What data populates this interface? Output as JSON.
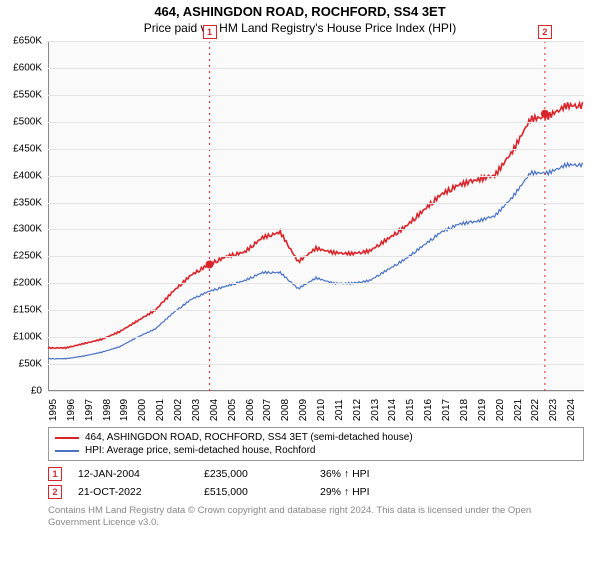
{
  "title_main": "464, ASHINGDON ROAD, ROCHFORD, SS4 3ET",
  "title_sub": "Price paid vs. HM Land Registry's House Price Index (HPI)",
  "chart": {
    "type": "line",
    "background_color": "#fafafa",
    "grid_color": "#e4e4e4",
    "axis_color": "#888888",
    "x_years": [
      1995,
      1996,
      1997,
      1998,
      1999,
      2000,
      2001,
      2002,
      2003,
      2004,
      2005,
      2006,
      2007,
      2008,
      2009,
      2010,
      2011,
      2012,
      2013,
      2014,
      2015,
      2016,
      2017,
      2018,
      2019,
      2020,
      2021,
      2022,
      2023,
      2024
    ],
    "ylim": [
      0,
      650000
    ],
    "ytick_step": 50000,
    "ytick_labels": [
      "£0",
      "£50K",
      "£100K",
      "£150K",
      "£200K",
      "£250K",
      "£300K",
      "£350K",
      "£400K",
      "£450K",
      "£500K",
      "£550K",
      "£600K",
      "£650K"
    ],
    "series": {
      "price_paid": {
        "color": "#d8242a",
        "width": 1.6,
        "label": "464, ASHINGDON ROAD, ROCHFORD, SS4 3ET (semi-detached house)",
        "values_by_year": {
          "1995": 80000,
          "1996": 80000,
          "1997": 88000,
          "1998": 96000,
          "1999": 110000,
          "2000": 130000,
          "2001": 150000,
          "2002": 185000,
          "2003": 215000,
          "2004": 235000,
          "2005": 250000,
          "2006": 258000,
          "2007": 285000,
          "2008": 295000,
          "2009": 240000,
          "2010": 265000,
          "2011": 257000,
          "2012": 255000,
          "2013": 260000,
          "2014": 282000,
          "2015": 305000,
          "2016": 335000,
          "2017": 365000,
          "2018": 383000,
          "2019": 392000,
          "2020": 400000,
          "2021": 445000,
          "2022": 505000,
          "2023": 510000,
          "2024": 530000
        }
      },
      "hpi": {
        "color": "#4a72c4",
        "width": 1.2,
        "label": "HPI: Average price, semi-detached house, Rochford",
        "values_by_year": {
          "1995": 60000,
          "1996": 60000,
          "1997": 65000,
          "1998": 72000,
          "1999": 82000,
          "2000": 100000,
          "2001": 115000,
          "2002": 145000,
          "2003": 170000,
          "2004": 185000,
          "2005": 195000,
          "2006": 205000,
          "2007": 220000,
          "2008": 220000,
          "2009": 190000,
          "2010": 210000,
          "2011": 200000,
          "2012": 200000,
          "2013": 205000,
          "2014": 225000,
          "2015": 245000,
          "2016": 270000,
          "2017": 295000,
          "2018": 310000,
          "2019": 315000,
          "2020": 325000,
          "2021": 360000,
          "2022": 405000,
          "2023": 405000,
          "2024": 420000
        }
      }
    }
  },
  "markers": [
    {
      "n": "1",
      "year": 2004.04,
      "price": 235000,
      "color": "#d8242a",
      "date": "12-JAN-2004",
      "price_label": "£235,000",
      "pct": "36% ↑ HPI"
    },
    {
      "n": "2",
      "year": 2022.81,
      "price": 515000,
      "color": "#d8242a",
      "date": "21-OCT-2022",
      "price_label": "£515,000",
      "pct": "29% ↑ HPI"
    }
  ],
  "footer": "Contains HM Land Registry data © Crown copyright and database right 2024. This data is licensed under the Open Government Licence v3.0."
}
